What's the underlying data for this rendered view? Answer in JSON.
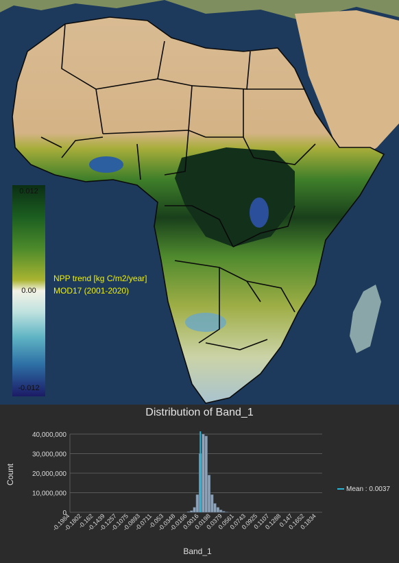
{
  "map": {
    "legend": {
      "max_label": "0.012",
      "mid_label": "0.00",
      "min_label": "-0.012"
    },
    "caption_line1": "NPP trend [kg C/m2/year]",
    "caption_line2": "MOD17 (2001-2020)",
    "colors": {
      "ocean": "#1d3a5c",
      "desert": "#d6b48a",
      "land": "#c9a77b",
      "forest_dark": "#0e2a14",
      "green": "#3f7f2a",
      "olive": "#a7ad3a",
      "negative": "#2c5fa0",
      "border": "#0a0a0a"
    }
  },
  "chart_data": {
    "type": "bar",
    "title": "Distribution of Band_1",
    "xlabel": "Band_1",
    "ylabel": "Count",
    "ylim": [
      0,
      40000000
    ],
    "y_ticks": [
      "40,000,000",
      "30,000,000",
      "20,000,000",
      "10,000,000",
      "0"
    ],
    "y_tick_values": [
      40000000,
      30000000,
      20000000,
      10000000,
      0
    ],
    "x_ticks": [
      "-0.1984",
      "-0.1802",
      "-0.162",
      "-0.1439",
      "-0.1257",
      "-0.1075",
      "-0.0893",
      "-0.0711",
      "-0.053",
      "-0.0348",
      "-0.0166",
      "0.0016",
      "0.0198",
      "0.0379",
      "0.0561",
      "0.0743",
      "0.0925",
      "0.1107",
      "0.1288",
      "0.147",
      "0.1652",
      "0.1834"
    ],
    "xlim": [
      -0.1984,
      0.1925
    ],
    "bins": [
      {
        "x": -0.0166,
        "count": 300000
      },
      {
        "x": -0.0121,
        "count": 800000
      },
      {
        "x": -0.0075,
        "count": 2500000
      },
      {
        "x": -0.003,
        "count": 9000000
      },
      {
        "x": 0.0016,
        "count": 30000000
      },
      {
        "x": 0.0061,
        "count": 40000000
      },
      {
        "x": 0.0107,
        "count": 39000000
      },
      {
        "x": 0.0152,
        "count": 19000000
      },
      {
        "x": 0.0198,
        "count": 9000000
      },
      {
        "x": 0.0243,
        "count": 4500000
      },
      {
        "x": 0.0289,
        "count": 2500000
      },
      {
        "x": 0.0334,
        "count": 1200000
      },
      {
        "x": 0.0379,
        "count": 500000
      },
      {
        "x": 0.0425,
        "count": 150000
      }
    ],
    "bin_width": 0.0045,
    "mean": 0.0037,
    "mean_label": "Mean : 0.0037",
    "bar_color": "#8fa3b8",
    "mean_color": "#29b6d6",
    "grid": true
  }
}
